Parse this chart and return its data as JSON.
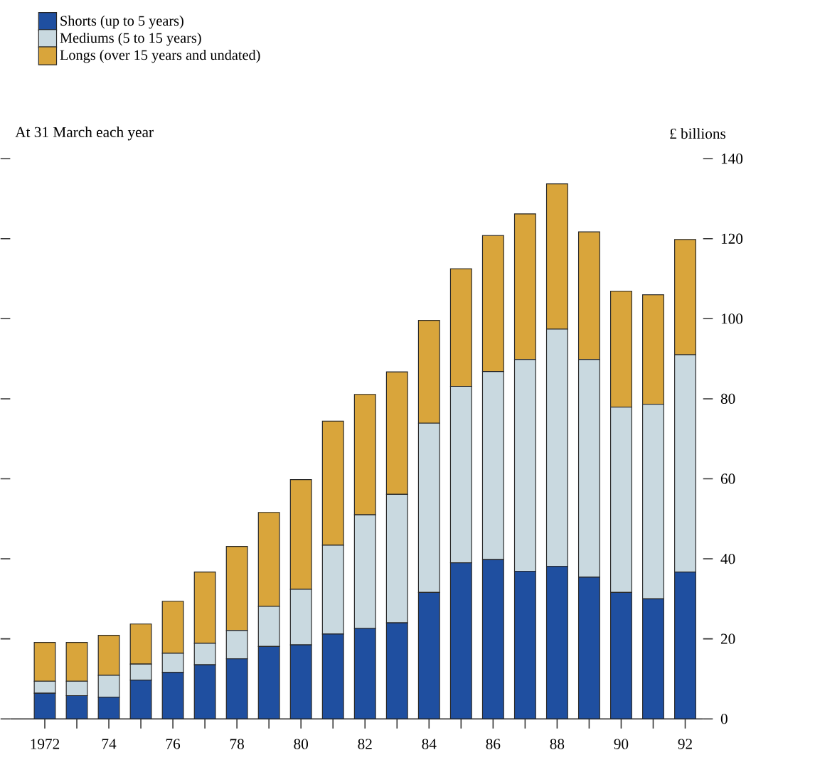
{
  "chart_data": {
    "type": "bar",
    "stacked": true,
    "annotations": [
      "At 31 March each year"
    ],
    "ylabel": "£ billions",
    "categories": [
      "1972",
      null,
      "74",
      null,
      "76",
      null,
      "78",
      null,
      "80",
      null,
      "82",
      null,
      "84",
      null,
      "86",
      null,
      "88",
      null,
      "90",
      null,
      "92"
    ],
    "series": [
      {
        "name": "Shorts (up to 5 years)",
        "color": "#1f4fa0",
        "values": [
          6.4,
          5.8,
          5.4,
          9.7,
          11.6,
          13.5,
          15.0,
          18.1,
          18.5,
          21.2,
          22.6,
          24.0,
          31.6,
          39.0,
          39.8,
          36.9,
          38.1,
          35.4,
          31.6,
          30.0,
          36.7
        ]
      },
      {
        "name": "Mediums (5 to 15 years)",
        "color": "#c9d9e0",
        "values": [
          3.0,
          3.6,
          5.5,
          4.0,
          4.8,
          5.4,
          7.1,
          10.0,
          13.9,
          22.2,
          28.4,
          32.1,
          42.3,
          44.1,
          47.0,
          52.9,
          59.3,
          54.4,
          46.3,
          48.6,
          54.3
        ]
      },
      {
        "name": "Longs (over 15 years and undated)",
        "color": "#d9a53b",
        "values": [
          9.7,
          9.7,
          10.0,
          10.0,
          13.0,
          17.8,
          21.0,
          23.5,
          27.4,
          31.0,
          30.1,
          30.6,
          25.7,
          29.4,
          34.0,
          36.4,
          36.3,
          31.9,
          29.0,
          27.4,
          28.8
        ]
      }
    ],
    "ylim": [
      0,
      140
    ],
    "yticks": [
      0,
      20,
      40,
      60,
      80,
      100,
      120,
      140
    ],
    "legend": "top left",
    "grid": false
  }
}
